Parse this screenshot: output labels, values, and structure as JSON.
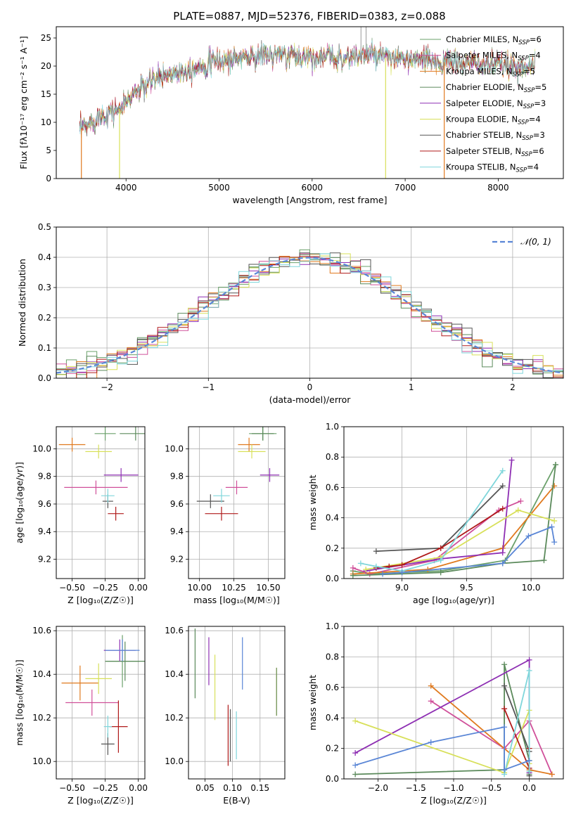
{
  "figure_title": "PLATE=0887, MJD=52376, FIBERID=0383, z=0.088",
  "colors": {
    "series": [
      "#6aa06a",
      "#d0509a",
      "#e07a1f",
      "#5b8a5b",
      "#8e2fb3",
      "#d8e05a",
      "#555555",
      "#b01a1a",
      "#7fd6db"
    ],
    "norm_curve": "#5a86d6",
    "grid": "#b0b0b0"
  },
  "chart_data": [
    {
      "id": "spectrum",
      "type": "line",
      "xlabel": "wavelength [Angstrom, rest frame]",
      "ylabel": "Flux [fλ10⁻¹⁷ erg cm⁻² s⁻¹ A⁻¹]",
      "xlim": [
        3250,
        8700
      ],
      "ylim": [
        0,
        27
      ],
      "xticks": [
        "4000",
        "5000",
        "6000",
        "7000",
        "8000"
      ],
      "yticks": [
        "0",
        "5",
        "10",
        "15",
        "20",
        "25"
      ],
      "legend": {
        "position": "right",
        "entries": [
          {
            "main": "Chabrier MILES, N",
            "sub": "SSP",
            "tail": "=6"
          },
          {
            "main": "Salpeter MILES, N",
            "sub": "SSP",
            "tail": "=4"
          },
          {
            "main": "Kroupa MILES, N",
            "sub": "SSP",
            "tail": "=5"
          },
          {
            "main": "Chabrier ELODIE, N",
            "sub": "SSP",
            "tail": "=5"
          },
          {
            "main": "Salpeter ELODIE, N",
            "sub": "SSP",
            "tail": "=3"
          },
          {
            "main": "Kroupa ELODIE, N",
            "sub": "SSP",
            "tail": "=4"
          },
          {
            "main": "Chabrier STELIB, N",
            "sub": "SSP",
            "tail": "=3"
          },
          {
            "main": "Salpeter STELIB, N",
            "sub": "SSP",
            "tail": "=6"
          },
          {
            "main": "Kroupa STELIB, N",
            "sub": "SSP",
            "tail": "=4"
          }
        ]
      },
      "continuum": {
        "x": [
          3500,
          3700,
          3950,
          4100,
          4300,
          4500,
          4700,
          4900,
          5200,
          5500,
          5800,
          6100,
          6400,
          6600,
          6900,
          7200,
          7500,
          7800,
          8100,
          8400
        ],
        "y": [
          8.5,
          11,
          12.5,
          15.5,
          17.5,
          18.8,
          19.5,
          20.5,
          21.5,
          22,
          21.8,
          21.6,
          21.5,
          22,
          21.2,
          21.0,
          20.6,
          20.3,
          20.0,
          20.0
        ]
      },
      "dips": [
        {
          "x": 3520,
          "y": 0,
          "series": 2
        },
        {
          "x": 3930,
          "y": 0,
          "series": 5
        },
        {
          "x": 6790,
          "y": 0,
          "series": 5
        },
        {
          "x": 7420,
          "y": 0,
          "series": 2
        }
      ],
      "spikes": [
        {
          "x": 6525,
          "y": 27
        },
        {
          "x": 6580,
          "y": 27
        }
      ]
    },
    {
      "id": "residual_hist",
      "type": "area",
      "xlabel": "(data-model)/error",
      "ylabel": "Normed distribution",
      "xlim": [
        -2.5,
        2.5
      ],
      "ylim": [
        0,
        0.5
      ],
      "xticks": [
        "−2",
        "−1",
        "0",
        "1",
        "2"
      ],
      "yticks": [
        "0.0",
        "0.1",
        "0.2",
        "0.3",
        "0.4",
        "0.5"
      ],
      "legend": {
        "position": "top-right",
        "entries": [
          "𝒩(0, 1)"
        ]
      },
      "bin_width": 0.1,
      "bin_start": -2.5
    },
    {
      "id": "age_vs_Z",
      "type": "scatter",
      "xlabel": "Z [log₁₀(Z/Z☉)]",
      "ylabel": "age  [log₁₀(age/yr)]",
      "xlim": [
        -0.62,
        0.05
      ],
      "ylim": [
        9.06,
        10.16
      ],
      "xticks": [
        "−0.50",
        "−0.25",
        "0.00"
      ],
      "yticks": [
        "9.2",
        "9.4",
        "9.6",
        "9.8",
        "10.0"
      ],
      "points": [
        {
          "x": -0.25,
          "xerr": 0.08,
          "y": 10.11,
          "yerr": 0.05,
          "series": 0
        },
        {
          "x": -0.32,
          "xerr": 0.24,
          "y": 9.72,
          "yerr": 0.05,
          "series": 1
        },
        {
          "x": -0.5,
          "xerr": 0.1,
          "y": 10.03,
          "yerr": 0.05,
          "series": 2
        },
        {
          "x": -0.02,
          "xerr": 0.12,
          "y": 10.11,
          "yerr": 0.05,
          "series": 3
        },
        {
          "x": -0.13,
          "xerr": 0.13,
          "y": 9.81,
          "yerr": 0.05,
          "series": 4
        },
        {
          "x": -0.3,
          "xerr": 0.1,
          "y": 9.98,
          "yerr": 0.05,
          "series": 5
        },
        {
          "x": -0.23,
          "xerr": 0.04,
          "y": 9.62,
          "yerr": 0.05,
          "series": 6
        },
        {
          "x": -0.17,
          "xerr": 0.06,
          "y": 9.53,
          "yerr": 0.05,
          "series": 7
        },
        {
          "x": -0.23,
          "xerr": 0.05,
          "y": 9.66,
          "yerr": 0.05,
          "series": 8
        }
      ]
    },
    {
      "id": "age_vs_mass",
      "type": "scatter",
      "xlabel": "mass [log₁₀(M/M☉)]",
      "ylabel": "",
      "xlim": [
        9.92,
        10.62
      ],
      "ylim": [
        9.06,
        10.16
      ],
      "xticks": [
        "10.00",
        "10.25",
        "10.50"
      ],
      "yticks": [
        "9.2",
        "9.4",
        "9.6",
        "9.8",
        "10.0"
      ],
      "points": [
        {
          "x": 10.46,
          "xerr": 0.1,
          "y": 10.11,
          "yerr": 0.05,
          "series": 0
        },
        {
          "x": 10.27,
          "xerr": 0.08,
          "y": 9.72,
          "yerr": 0.05,
          "series": 1
        },
        {
          "x": 10.36,
          "xerr": 0.08,
          "y": 10.03,
          "yerr": 0.05,
          "series": 2
        },
        {
          "x": 10.46,
          "xerr": 0.08,
          "y": 10.11,
          "yerr": 0.05,
          "series": 3
        },
        {
          "x": 10.51,
          "xerr": 0.07,
          "y": 9.81,
          "yerr": 0.05,
          "series": 4
        },
        {
          "x": 10.38,
          "xerr": 0.1,
          "y": 9.98,
          "yerr": 0.05,
          "series": 5
        },
        {
          "x": 10.08,
          "xerr": 0.1,
          "y": 9.62,
          "yerr": 0.05,
          "series": 6
        },
        {
          "x": 10.16,
          "xerr": 0.12,
          "y": 9.53,
          "yerr": 0.05,
          "series": 7
        },
        {
          "x": 10.16,
          "xerr": 0.06,
          "y": 9.66,
          "yerr": 0.05,
          "series": 8
        }
      ]
    },
    {
      "id": "weight_vs_age",
      "type": "line",
      "xlabel": "age  [log₁₀(age/yr)]",
      "ylabel": "mass weight",
      "xlim": [
        8.55,
        10.25
      ],
      "ylim": [
        0,
        1
      ],
      "xticks": [
        "9.0",
        "9.5",
        "10.0"
      ],
      "yticks": [
        "0.0",
        "0.2",
        "0.4",
        "0.6",
        "0.8",
        "1.0"
      ],
      "series": [
        {
          "color_index": 0,
          "points": [
            [
              8.62,
              0.05
            ],
            [
              8.75,
              0.03
            ],
            [
              9.0,
              0.04
            ],
            [
              9.3,
              0.05
            ],
            [
              9.8,
              0.12
            ],
            [
              10.19,
              0.75
            ]
          ]
        },
        {
          "color_index": 1,
          "points": [
            [
              8.62,
              0.07
            ],
            [
              8.75,
              0.03
            ],
            [
              9.25,
              0.12
            ],
            [
              9.75,
              0.45
            ],
            [
              9.92,
              0.51
            ]
          ]
        },
        {
          "color_index": 2,
          "points": [
            [
              8.62,
              0.03
            ],
            [
              9.2,
              0.06
            ],
            [
              9.78,
              0.2
            ],
            [
              10.18,
              0.61
            ]
          ]
        },
        {
          "color_index": 3,
          "points": [
            [
              8.62,
              0.02
            ],
            [
              9.3,
              0.04
            ],
            [
              9.78,
              0.1
            ],
            [
              10.1,
              0.12
            ],
            [
              10.19,
              0.75
            ]
          ]
        },
        {
          "color_index": 4,
          "points": [
            [
              8.72,
              0.05
            ],
            [
              9.3,
              0.13
            ],
            [
              9.78,
              0.17
            ],
            [
              9.85,
              0.78
            ]
          ]
        },
        {
          "color_index": 5,
          "points": [
            [
              8.72,
              0.06
            ],
            [
              9.3,
              0.14
            ],
            [
              9.9,
              0.45
            ],
            [
              10.18,
              0.38
            ]
          ]
        },
        {
          "color_index": 6,
          "points": [
            [
              8.8,
              0.18
            ],
            [
              9.3,
              0.2
            ],
            [
              9.78,
              0.61
            ]
          ]
        },
        {
          "color_index": 7,
          "points": [
            [
              8.8,
              0.07
            ],
            [
              8.9,
              0.08
            ],
            [
              9.0,
              0.09
            ],
            [
              9.3,
              0.2
            ],
            [
              9.78,
              0.46
            ]
          ]
        },
        {
          "color_index": 8,
          "points": [
            [
              8.68,
              0.1
            ],
            [
              8.8,
              0.08
            ],
            [
              9.0,
              0.05
            ],
            [
              9.3,
              0.12
            ],
            [
              9.78,
              0.71
            ]
          ]
        },
        {
          "color_index": 9,
          "points": [
            [
              8.85,
              0.03
            ],
            [
              9.0,
              0.04
            ],
            [
              9.78,
              0.1
            ],
            [
              9.98,
              0.28
            ],
            [
              10.16,
              0.34
            ],
            [
              10.18,
              0.24
            ]
          ]
        }
      ]
    },
    {
      "id": "mass_vs_Z",
      "type": "scatter",
      "xlabel": "Z [log₁₀(Z/Z☉)]",
      "ylabel": "mass [log₁₀(M/M☉)]",
      "xlim": [
        -0.62,
        0.05
      ],
      "ylim": [
        9.92,
        10.62
      ],
      "xticks": [
        "−0.50",
        "−0.25",
        "0.00"
      ],
      "yticks": [
        "10.0",
        "10.2",
        "10.4",
        "10.6"
      ],
      "points": [
        {
          "x": -0.12,
          "xerr": 0.13,
          "y": 10.46,
          "yerr": 0.12,
          "series": 0
        },
        {
          "x": -0.35,
          "xerr": 0.2,
          "y": 10.27,
          "yerr": 0.06,
          "series": 1
        },
        {
          "x": -0.44,
          "xerr": 0.14,
          "y": 10.36,
          "yerr": 0.08,
          "series": 2
        },
        {
          "x": -0.1,
          "xerr": 0.15,
          "y": 10.46,
          "yerr": 0.09,
          "series": 3
        },
        {
          "x": -0.14,
          "xerr": 0.12,
          "y": 10.51,
          "yerr": 0.05,
          "series": 4
        },
        {
          "x": -0.3,
          "xerr": 0.1,
          "y": 10.38,
          "yerr": 0.07,
          "series": 5
        },
        {
          "x": -0.23,
          "xerr": 0.05,
          "y": 10.08,
          "yerr": 0.05,
          "series": 6
        },
        {
          "x": -0.15,
          "xerr": 0.07,
          "y": 10.16,
          "yerr": 0.12,
          "series": 7
        },
        {
          "x": -0.23,
          "xerr": 0.03,
          "y": 10.16,
          "yerr": 0.05,
          "series": 8
        },
        {
          "x": -0.12,
          "xerr": 0.13,
          "y": 10.51,
          "yerr": 0.05,
          "series": 9
        }
      ]
    },
    {
      "id": "mass_vs_ebv",
      "type": "scatter",
      "xlabel": "E(B-V)",
      "ylabel": "",
      "xlim": [
        0.02,
        0.195
      ],
      "ylim": [
        9.92,
        10.62
      ],
      "xticks": [
        "0.05",
        "0.10",
        "0.15"
      ],
      "yticks": [
        "10.0",
        "10.2",
        "10.4",
        "10.6"
      ],
      "points": [
        {
          "x": 0.18,
          "yerr": 0.11,
          "y": 10.32,
          "series": 2
        },
        {
          "x": 0.18,
          "yerr": 0.11,
          "y": 10.32,
          "series": 0
        },
        {
          "x": 0.032,
          "yerr": 0.16,
          "y": 10.45,
          "series": 3
        },
        {
          "x": 0.057,
          "yerr": 0.11,
          "y": 10.46,
          "series": 4
        },
        {
          "x": 0.068,
          "yerr": 0.15,
          "y": 10.34,
          "series": 5
        },
        {
          "x": 0.096,
          "yerr": 0.12,
          "y": 10.12,
          "series": 6
        },
        {
          "x": 0.092,
          "yerr": 0.14,
          "y": 10.12,
          "series": 7
        },
        {
          "x": 0.107,
          "yerr": 0.11,
          "y": 10.12,
          "series": 8
        },
        {
          "x": 0.118,
          "yerr": 0.12,
          "y": 10.45,
          "series": 9
        }
      ]
    },
    {
      "id": "weight_vs_Z",
      "type": "line",
      "xlabel": "Z [log₁₀(Z/Z☉)]",
      "ylabel": "mass weight",
      "xlim": [
        -2.45,
        0.45
      ],
      "ylim": [
        0,
        1
      ],
      "xticks": [
        "−2.0",
        "−1.5",
        "−1.0",
        "−0.5",
        "0.0"
      ],
      "yticks": [
        "0.0",
        "0.2",
        "0.4",
        "0.6",
        "0.8",
        "1.0"
      ],
      "series": [
        {
          "color_index": 3,
          "points": [
            [
              -2.3,
              0.03
            ],
            [
              -0.33,
              0.06
            ],
            [
              -0.33,
              0.75
            ],
            [
              0.0,
              0.12
            ],
            [
              0.0,
              0.03
            ]
          ]
        },
        {
          "color_index": 1,
          "points": [
            [
              -1.3,
              0.51
            ],
            [
              -0.33,
              0.2
            ],
            [
              0.0,
              0.38
            ],
            [
              0.3,
              0.03
            ]
          ]
        },
        {
          "color_index": 2,
          "points": [
            [
              -1.3,
              0.61
            ],
            [
              0.0,
              0.06
            ],
            [
              0.3,
              0.03
            ]
          ]
        },
        {
          "color_index": 4,
          "points": [
            [
              -2.3,
              0.17
            ],
            [
              0.0,
              0.78
            ],
            [
              0.0,
              0.04
            ]
          ]
        },
        {
          "color_index": 5,
          "points": [
            [
              -2.3,
              0.38
            ],
            [
              -0.33,
              0.04
            ],
            [
              0.0,
              0.45
            ],
            [
              0.0,
              0.1
            ]
          ]
        },
        {
          "color_index": 6,
          "points": [
            [
              -0.33,
              0.61
            ],
            [
              0.0,
              0.18
            ],
            [
              0.0,
              0.02
            ]
          ]
        },
        {
          "color_index": 7,
          "points": [
            [
              -0.33,
              0.46
            ],
            [
              0.0,
              0.07
            ],
            [
              0.0,
              0.2
            ]
          ]
        },
        {
          "color_index": 8,
          "points": [
            [
              -0.33,
              0.03
            ],
            [
              0.0,
              0.71
            ],
            [
              0.0,
              0.05
            ]
          ]
        },
        {
          "color_index": 9,
          "points": [
            [
              -2.3,
              0.09
            ],
            [
              -1.3,
              0.24
            ],
            [
              -0.33,
              0.34
            ],
            [
              -0.33,
              0.06
            ],
            [
              0.0,
              0.12
            ]
          ]
        }
      ]
    }
  ]
}
